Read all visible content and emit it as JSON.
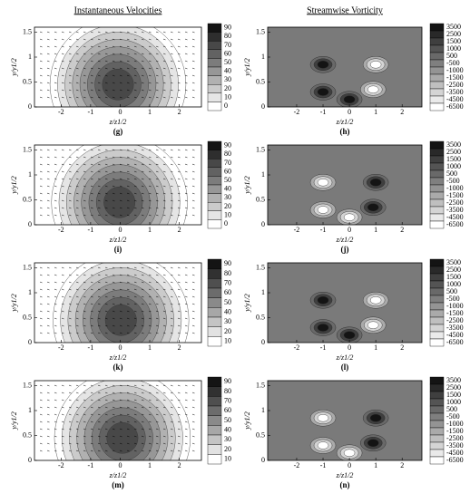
{
  "chart_data": [
    {
      "type": "contour",
      "title": "Instantaneous Velocities",
      "panel_label": "(g)",
      "xlabel": "z/z1/2",
      "ylabel": "y/y1/2",
      "xlim": [
        -2.9,
        2.75
      ],
      "ylim": [
        0,
        1.6
      ],
      "xticks": [
        -2,
        -1,
        0,
        1,
        2
      ],
      "yticks": [
        0,
        0.5,
        1,
        1.5
      ],
      "cticks": [
        90,
        80,
        70,
        60,
        50,
        40,
        30,
        20,
        10,
        0
      ]
    },
    {
      "type": "contour",
      "title": "Streamwise Vorticity",
      "panel_label": "(h)",
      "xlabel": "z/z1/2",
      "ylabel": "y/y1/2",
      "xlim": [
        -3.1,
        2.75
      ],
      "ylim": [
        0,
        1.6
      ],
      "xticks": [
        -2,
        -1,
        0,
        1,
        2
      ],
      "yticks": [
        0,
        0.5,
        1,
        1.5
      ],
      "cticks": [
        3500,
        2500,
        1500,
        1000,
        500,
        -500,
        -1000,
        -1500,
        -2500,
        -3500,
        -4500,
        -6500
      ]
    },
    {
      "type": "contour",
      "panel_label": "(i)",
      "xlabel": "z/z1/2",
      "ylabel": "y/y1/2",
      "xlim": [
        -2.9,
        2.75
      ],
      "ylim": [
        0,
        1.6
      ],
      "xticks": [
        -2,
        -1,
        0,
        1,
        2
      ],
      "yticks": [
        0,
        0.5,
        1,
        1.5
      ],
      "cticks": [
        90,
        80,
        70,
        60,
        50,
        40,
        30,
        20,
        10,
        0
      ]
    },
    {
      "type": "contour",
      "panel_label": "(j)",
      "xlabel": "z/z1/2",
      "ylabel": "y/y1/2",
      "xlim": [
        -3.1,
        2.75
      ],
      "ylim": [
        0,
        1.6
      ],
      "xticks": [
        -2,
        -1,
        0,
        1,
        2
      ],
      "yticks": [
        0,
        0.5,
        1,
        1.5
      ],
      "cticks": [
        3500,
        2500,
        1500,
        1000,
        500,
        -500,
        -1000,
        -1500,
        -2500,
        -3500,
        -4500,
        -6500
      ]
    },
    {
      "type": "contour",
      "panel_label": "(k)",
      "xlabel": "z/z1/2",
      "ylabel": "y/y1/2",
      "xlim": [
        -2.9,
        2.75
      ],
      "ylim": [
        0,
        1.6
      ],
      "xticks": [
        -2,
        -1,
        0,
        1,
        2
      ],
      "yticks": [
        0,
        0.5,
        1,
        1.5
      ],
      "cticks": [
        90,
        80,
        70,
        60,
        50,
        40,
        30,
        20,
        10
      ]
    },
    {
      "type": "contour",
      "panel_label": "(l)",
      "xlabel": "z/z1/2",
      "ylabel": "y/y1/2",
      "xlim": [
        -3.1,
        2.75
      ],
      "ylim": [
        0,
        1.6
      ],
      "xticks": [
        -2,
        -1,
        0,
        1,
        2
      ],
      "yticks": [
        0,
        0.5,
        1,
        1.5
      ],
      "cticks": [
        3500,
        2500,
        1500,
        1000,
        500,
        -500,
        -1000,
        -1500,
        -2500,
        -3500,
        -4500,
        -6500
      ]
    },
    {
      "type": "contour",
      "panel_label": "(m)",
      "xlabel": "z/z1/2",
      "ylabel": "y/y1/2",
      "xlim": [
        -2.9,
        2.75
      ],
      "ylim": [
        0,
        1.6
      ],
      "xticks": [
        -2,
        -1,
        0,
        1,
        2
      ],
      "yticks": [
        0,
        0.5,
        1,
        1.5
      ],
      "cticks": [
        90,
        80,
        70,
        60,
        50,
        40,
        30,
        20,
        10
      ]
    },
    {
      "type": "contour",
      "panel_label": "(n)",
      "xlabel": "z/z1/2",
      "ylabel": "y/y1/2",
      "xlim": [
        -3.1,
        2.75
      ],
      "ylim": [
        0,
        1.6
      ],
      "xticks": [
        -2,
        -1,
        0,
        1,
        2
      ],
      "yticks": [
        0,
        0.5,
        1,
        1.5
      ],
      "cticks": [
        3500,
        2500,
        1500,
        1000,
        500,
        -500,
        -1000,
        -1500,
        -2500,
        -3500,
        -4500,
        -6500
      ]
    }
  ]
}
